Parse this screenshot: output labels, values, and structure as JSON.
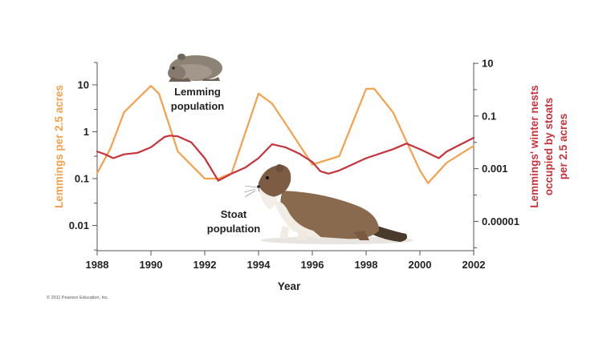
{
  "chart_data": {
    "type": "line",
    "xlabel": "Year",
    "x_ticks": [
      "1988",
      "1990",
      "1992",
      "1994",
      "1996",
      "1998",
      "2000",
      "2002"
    ],
    "xlim": [
      1988,
      2002
    ],
    "y_left": {
      "label": "Lemmings per 2.5 acres",
      "scale": "log",
      "ticks": [
        "10",
        "1",
        "0.1",
        "0.01"
      ],
      "tick_values": [
        10,
        1,
        0.1,
        0.01
      ],
      "range": [
        0.0029,
        30
      ],
      "color": "#f5a04a"
    },
    "y_right": {
      "label_lines": [
        "Lemmings' winter nests",
        "occupied by stoats",
        "per 2.5 acres"
      ],
      "scale": "log",
      "ticks": [
        "10",
        "0.1",
        "0.001",
        "0.00001"
      ],
      "tick_values": [
        10,
        0.1,
        0.001,
        1e-05
      ],
      "range": [
        7.7e-07,
        10.8
      ],
      "color": "#c8323a"
    },
    "annotations": {
      "lemming": [
        "Lemming",
        "population"
      ],
      "stoat": [
        "Stoat",
        "population"
      ]
    },
    "copyright": "© 2011 Pearson Education, Inc.",
    "series": [
      {
        "name": "Lemming population",
        "axis": "left",
        "color": "#f5a04a",
        "x": [
          1988,
          1988.5,
          1989,
          1989.5,
          1990,
          1990.3,
          1991,
          1992,
          1992.5,
          1993,
          1994,
          1994.5,
          1995,
          1996,
          1997,
          1998,
          1998.3,
          1999,
          2000,
          2000.3,
          2001,
          2002
        ],
        "y": [
          0.13,
          0.45,
          2.6,
          5.0,
          9.5,
          6.5,
          0.38,
          0.1,
          0.1,
          0.13,
          6.5,
          4.0,
          1.5,
          0.2,
          0.3,
          8.2,
          8.3,
          2.6,
          0.15,
          0.08,
          0.22,
          0.5
        ]
      },
      {
        "name": "Stoat population",
        "axis": "right",
        "color": "#c8323a",
        "x": [
          1988,
          1988.3,
          1988.6,
          1989,
          1989.5,
          1990,
          1990.5,
          1990.7,
          1991,
          1991.5,
          1992,
          1992.5,
          1993,
          1993.5,
          1994,
          1994.5,
          1995,
          1995.5,
          1996,
          1996.3,
          1996.6,
          1997,
          1998,
          1999,
          1999.5,
          2000,
          2000.7,
          2001,
          2002
        ],
        "y": [
          0.0045,
          0.0035,
          0.0025,
          0.0035,
          0.004,
          0.0065,
          0.016,
          0.018,
          0.017,
          0.01,
          0.0025,
          0.00035,
          0.00065,
          0.0011,
          0.0025,
          0.0085,
          0.0065,
          0.0038,
          0.0018,
          0.0008,
          0.00065,
          0.00085,
          0.0025,
          0.0055,
          0.009,
          0.0055,
          0.0025,
          0.0045,
          0.015
        ]
      }
    ]
  }
}
